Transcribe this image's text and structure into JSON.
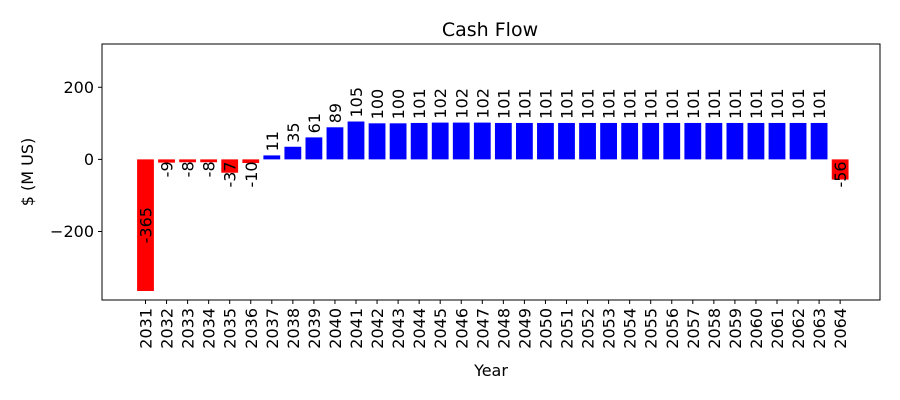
{
  "chart_data": {
    "type": "bar",
    "title": "Cash Flow",
    "xlabel": "Year",
    "ylabel": "$ (M US)",
    "ylim": [
      -390,
      320
    ],
    "yticks": [
      -200,
      0,
      200
    ],
    "ytick_labels": [
      "−200",
      "0",
      "200"
    ],
    "grid": false,
    "legend": "none",
    "colors": {
      "positive": "#0000ff",
      "negative": "#ff0000"
    },
    "categories": [
      "2031",
      "2032",
      "2033",
      "2034",
      "2035",
      "2036",
      "2037",
      "2038",
      "2039",
      "2040",
      "2041",
      "2042",
      "2043",
      "2044",
      "2045",
      "2046",
      "2047",
      "2048",
      "2049",
      "2050",
      "2051",
      "2052",
      "2053",
      "2054",
      "2055",
      "2056",
      "2057",
      "2058",
      "2059",
      "2060",
      "2061",
      "2062",
      "2063",
      "2064"
    ],
    "values": [
      -365,
      -9,
      -8,
      -8,
      -37,
      -10,
      11,
      35,
      61,
      89,
      105,
      100,
      100,
      101,
      102,
      102,
      102,
      101,
      101,
      101,
      101,
      101,
      101,
      101,
      101,
      101,
      101,
      101,
      101,
      101,
      101,
      101,
      101,
      -56
    ]
  }
}
